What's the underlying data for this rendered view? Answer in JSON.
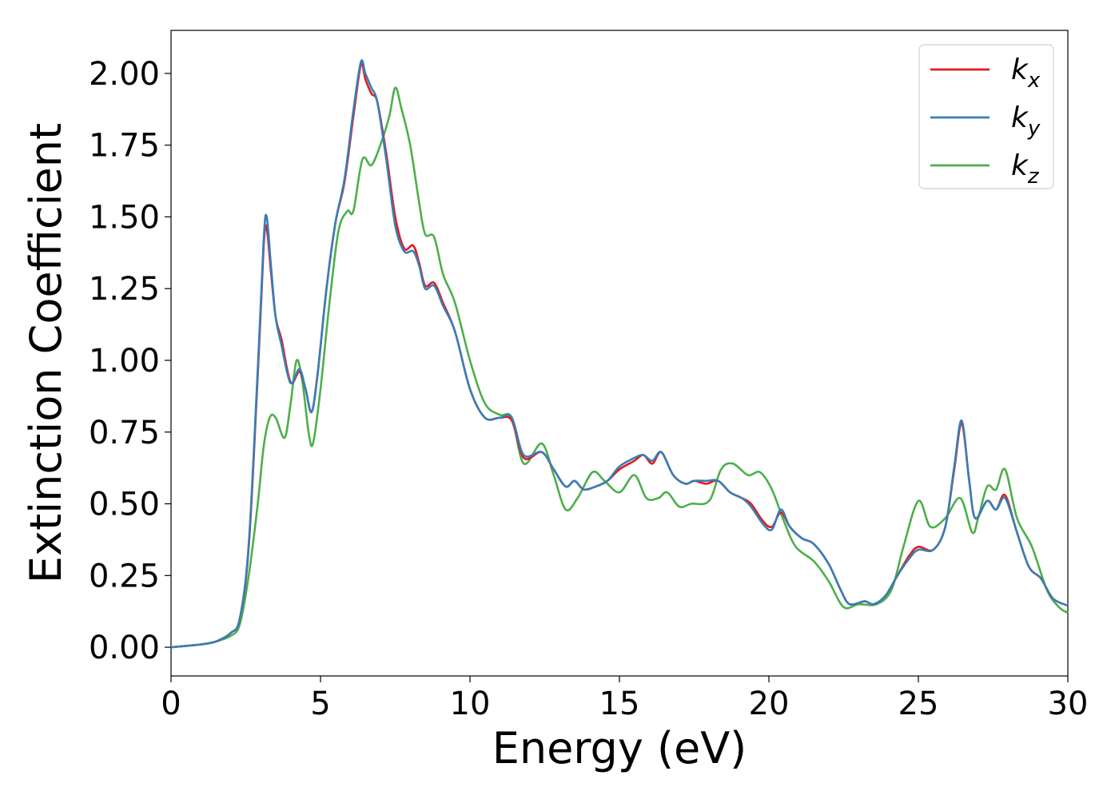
{
  "chart_data": {
    "type": "line",
    "xlabel": "Energy (eV)",
    "ylabel": "Extinction Coefficient",
    "xlim": [
      0,
      30
    ],
    "ylim": [
      -0.1,
      2.15
    ],
    "x_ticks": [
      "0",
      "5",
      "10",
      "15",
      "20",
      "25",
      "30"
    ],
    "y_ticks": [
      "0.00",
      "0.25",
      "0.50",
      "0.75",
      "1.00",
      "1.25",
      "1.50",
      "1.75",
      "2.00"
    ],
    "grid": false,
    "legend_position": "top-right",
    "series": [
      {
        "name": "k_x",
        "label_main": "k",
        "label_sub": "x",
        "color": "#e41a1c",
        "points": [
          [
            0,
            0
          ],
          [
            1,
            0.01
          ],
          [
            1.5,
            0.02
          ],
          [
            2,
            0.05
          ],
          [
            2.3,
            0.1
          ],
          [
            2.6,
            0.35
          ],
          [
            2.9,
            0.95
          ],
          [
            3.1,
            1.4
          ],
          [
            3.2,
            1.46
          ],
          [
            3.35,
            1.3
          ],
          [
            3.5,
            1.15
          ],
          [
            3.7,
            1.07
          ],
          [
            3.9,
            0.96
          ],
          [
            4.05,
            0.92
          ],
          [
            4.3,
            0.96
          ],
          [
            4.5,
            0.9
          ],
          [
            4.7,
            0.82
          ],
          [
            4.9,
            0.95
          ],
          [
            5.2,
            1.25
          ],
          [
            5.5,
            1.48
          ],
          [
            5.8,
            1.62
          ],
          [
            6.1,
            1.85
          ],
          [
            6.35,
            2.03
          ],
          [
            6.5,
            1.98
          ],
          [
            6.7,
            1.93
          ],
          [
            6.9,
            1.9
          ],
          [
            7.2,
            1.72
          ],
          [
            7.5,
            1.5
          ],
          [
            7.8,
            1.39
          ],
          [
            8.1,
            1.4
          ],
          [
            8.3,
            1.34
          ],
          [
            8.5,
            1.26
          ],
          [
            8.8,
            1.27
          ],
          [
            9.1,
            1.2
          ],
          [
            9.5,
            1.1
          ],
          [
            10,
            0.9
          ],
          [
            10.5,
            0.8
          ],
          [
            11,
            0.8
          ],
          [
            11.4,
            0.79
          ],
          [
            11.8,
            0.66
          ],
          [
            12.4,
            0.68
          ],
          [
            12.8,
            0.62
          ],
          [
            13.2,
            0.56
          ],
          [
            13.5,
            0.58
          ],
          [
            13.8,
            0.55
          ],
          [
            14.2,
            0.56
          ],
          [
            14.6,
            0.58
          ],
          [
            15,
            0.62
          ],
          [
            15.5,
            0.65
          ],
          [
            15.8,
            0.67
          ],
          [
            16.1,
            0.64
          ],
          [
            16.4,
            0.68
          ],
          [
            16.8,
            0.6
          ],
          [
            17.2,
            0.57
          ],
          [
            17.5,
            0.58
          ],
          [
            17.9,
            0.57
          ],
          [
            18.3,
            0.58
          ],
          [
            18.7,
            0.54
          ],
          [
            19.1,
            0.52
          ],
          [
            19.4,
            0.5
          ],
          [
            19.8,
            0.44
          ],
          [
            20.1,
            0.42
          ],
          [
            20.4,
            0.47
          ],
          [
            20.7,
            0.42
          ],
          [
            21.1,
            0.38
          ],
          [
            21.5,
            0.36
          ],
          [
            22,
            0.29
          ],
          [
            22.4,
            0.2
          ],
          [
            22.7,
            0.15
          ],
          [
            23.2,
            0.16
          ],
          [
            23.5,
            0.15
          ],
          [
            23.9,
            0.18
          ],
          [
            24.3,
            0.25
          ],
          [
            24.7,
            0.32
          ],
          [
            25,
            0.35
          ],
          [
            25.5,
            0.34
          ],
          [
            25.9,
            0.42
          ],
          [
            26.2,
            0.62
          ],
          [
            26.45,
            0.78
          ],
          [
            26.7,
            0.58
          ],
          [
            26.9,
            0.45
          ],
          [
            27.3,
            0.51
          ],
          [
            27.6,
            0.48
          ],
          [
            27.9,
            0.53
          ],
          [
            28.3,
            0.4
          ],
          [
            28.7,
            0.28
          ],
          [
            29.1,
            0.24
          ],
          [
            29.5,
            0.17
          ],
          [
            30,
            0.145
          ]
        ]
      },
      {
        "name": "k_y",
        "label_main": "k",
        "label_sub": "y",
        "color": "#377eb8",
        "points": [
          [
            0,
            0
          ],
          [
            1,
            0.01
          ],
          [
            1.5,
            0.02
          ],
          [
            2,
            0.05
          ],
          [
            2.3,
            0.1
          ],
          [
            2.6,
            0.36
          ],
          [
            2.9,
            0.97
          ],
          [
            3.1,
            1.42
          ],
          [
            3.2,
            1.5
          ],
          [
            3.35,
            1.32
          ],
          [
            3.5,
            1.15
          ],
          [
            3.7,
            1.05
          ],
          [
            3.9,
            0.95
          ],
          [
            4.05,
            0.92
          ],
          [
            4.3,
            0.97
          ],
          [
            4.5,
            0.9
          ],
          [
            4.7,
            0.82
          ],
          [
            4.9,
            0.95
          ],
          [
            5.2,
            1.25
          ],
          [
            5.5,
            1.48
          ],
          [
            5.8,
            1.63
          ],
          [
            6.1,
            1.87
          ],
          [
            6.35,
            2.04
          ],
          [
            6.5,
            2.0
          ],
          [
            6.7,
            1.95
          ],
          [
            6.9,
            1.9
          ],
          [
            7.2,
            1.7
          ],
          [
            7.5,
            1.47
          ],
          [
            7.8,
            1.38
          ],
          [
            8.1,
            1.38
          ],
          [
            8.3,
            1.33
          ],
          [
            8.5,
            1.25
          ],
          [
            8.8,
            1.26
          ],
          [
            9.1,
            1.19
          ],
          [
            9.5,
            1.1
          ],
          [
            10,
            0.9
          ],
          [
            10.5,
            0.8
          ],
          [
            11,
            0.8
          ],
          [
            11.4,
            0.8
          ],
          [
            11.8,
            0.67
          ],
          [
            12.4,
            0.68
          ],
          [
            12.8,
            0.62
          ],
          [
            13.2,
            0.56
          ],
          [
            13.5,
            0.58
          ],
          [
            13.8,
            0.55
          ],
          [
            14.2,
            0.56
          ],
          [
            14.6,
            0.58
          ],
          [
            15,
            0.63
          ],
          [
            15.5,
            0.66
          ],
          [
            15.8,
            0.67
          ],
          [
            16.1,
            0.65
          ],
          [
            16.4,
            0.68
          ],
          [
            16.8,
            0.6
          ],
          [
            17.2,
            0.57
          ],
          [
            17.5,
            0.58
          ],
          [
            17.9,
            0.58
          ],
          [
            18.3,
            0.58
          ],
          [
            18.7,
            0.54
          ],
          [
            19.1,
            0.52
          ],
          [
            19.4,
            0.49
          ],
          [
            19.8,
            0.43
          ],
          [
            20.1,
            0.41
          ],
          [
            20.4,
            0.48
          ],
          [
            20.7,
            0.42
          ],
          [
            21.1,
            0.38
          ],
          [
            21.5,
            0.36
          ],
          [
            22,
            0.29
          ],
          [
            22.4,
            0.2
          ],
          [
            22.7,
            0.15
          ],
          [
            23.2,
            0.16
          ],
          [
            23.5,
            0.15
          ],
          [
            23.9,
            0.18
          ],
          [
            24.3,
            0.25
          ],
          [
            24.7,
            0.31
          ],
          [
            25,
            0.34
          ],
          [
            25.5,
            0.34
          ],
          [
            25.9,
            0.42
          ],
          [
            26.2,
            0.63
          ],
          [
            26.45,
            0.79
          ],
          [
            26.7,
            0.58
          ],
          [
            26.9,
            0.45
          ],
          [
            27.3,
            0.51
          ],
          [
            27.6,
            0.48
          ],
          [
            27.9,
            0.52
          ],
          [
            28.3,
            0.4
          ],
          [
            28.7,
            0.28
          ],
          [
            29.1,
            0.24
          ],
          [
            29.5,
            0.17
          ],
          [
            30,
            0.145
          ]
        ]
      },
      {
        "name": "k_z",
        "label_main": "k",
        "label_sub": "z",
        "color": "#4daf4a",
        "points": [
          [
            0,
            0
          ],
          [
            1,
            0.01
          ],
          [
            1.5,
            0.02
          ],
          [
            2,
            0.04
          ],
          [
            2.3,
            0.08
          ],
          [
            2.6,
            0.25
          ],
          [
            2.9,
            0.5
          ],
          [
            3.1,
            0.7
          ],
          [
            3.3,
            0.8
          ],
          [
            3.5,
            0.8
          ],
          [
            3.8,
            0.73
          ],
          [
            4.0,
            0.85
          ],
          [
            4.2,
            1.0
          ],
          [
            4.4,
            0.92
          ],
          [
            4.6,
            0.75
          ],
          [
            4.75,
            0.71
          ],
          [
            5.0,
            0.9
          ],
          [
            5.3,
            1.2
          ],
          [
            5.6,
            1.45
          ],
          [
            5.9,
            1.52
          ],
          [
            6.1,
            1.52
          ],
          [
            6.4,
            1.7
          ],
          [
            6.7,
            1.68
          ],
          [
            7.0,
            1.75
          ],
          [
            7.3,
            1.85
          ],
          [
            7.5,
            1.95
          ],
          [
            7.7,
            1.88
          ],
          [
            8.0,
            1.75
          ],
          [
            8.3,
            1.55
          ],
          [
            8.5,
            1.44
          ],
          [
            8.8,
            1.43
          ],
          [
            9.1,
            1.3
          ],
          [
            9.5,
            1.2
          ],
          [
            10,
            1.0
          ],
          [
            10.5,
            0.85
          ],
          [
            11,
            0.81
          ],
          [
            11.4,
            0.8
          ],
          [
            11.8,
            0.64
          ],
          [
            12.4,
            0.71
          ],
          [
            12.8,
            0.6
          ],
          [
            13.2,
            0.48
          ],
          [
            13.6,
            0.52
          ],
          [
            14.1,
            0.61
          ],
          [
            14.5,
            0.58
          ],
          [
            15,
            0.54
          ],
          [
            15.5,
            0.6
          ],
          [
            15.9,
            0.52
          ],
          [
            16.3,
            0.52
          ],
          [
            16.6,
            0.54
          ],
          [
            17.0,
            0.49
          ],
          [
            17.4,
            0.5
          ],
          [
            18.0,
            0.51
          ],
          [
            18.4,
            0.62
          ],
          [
            18.8,
            0.64
          ],
          [
            19.3,
            0.6
          ],
          [
            19.7,
            0.61
          ],
          [
            20.1,
            0.55
          ],
          [
            20.5,
            0.44
          ],
          [
            20.9,
            0.35
          ],
          [
            21.5,
            0.3
          ],
          [
            22,
            0.23
          ],
          [
            22.5,
            0.14
          ],
          [
            23.0,
            0.15
          ],
          [
            23.6,
            0.15
          ],
          [
            24.1,
            0.2
          ],
          [
            24.5,
            0.35
          ],
          [
            25,
            0.51
          ],
          [
            25.4,
            0.42
          ],
          [
            25.9,
            0.45
          ],
          [
            26.4,
            0.52
          ],
          [
            26.8,
            0.4
          ],
          [
            27.0,
            0.45
          ],
          [
            27.3,
            0.56
          ],
          [
            27.6,
            0.55
          ],
          [
            27.9,
            0.62
          ],
          [
            28.3,
            0.45
          ],
          [
            28.8,
            0.35
          ],
          [
            29.3,
            0.2
          ],
          [
            29.7,
            0.14
          ],
          [
            30,
            0.12
          ]
        ]
      }
    ]
  }
}
